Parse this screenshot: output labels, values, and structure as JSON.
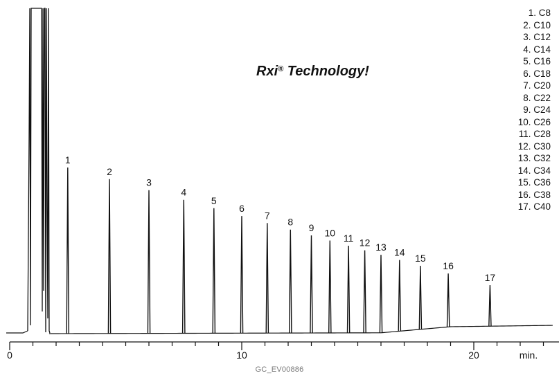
{
  "chart_data": {
    "type": "line",
    "x_unit": "min.",
    "xlim": [
      0,
      23.5
    ],
    "x_ticks": [
      0,
      10,
      20
    ],
    "x_minor_step": 1,
    "peaks": [
      {
        "label": "1",
        "rt": 2.5
      },
      {
        "label": "2",
        "rt": 4.3
      },
      {
        "label": "3",
        "rt": 6.0
      },
      {
        "label": "4",
        "rt": 7.5
      },
      {
        "label": "5",
        "rt": 8.8
      },
      {
        "label": "6",
        "rt": 10.0
      },
      {
        "label": "7",
        "rt": 11.1
      },
      {
        "label": "8",
        "rt": 12.1
      },
      {
        "label": "9",
        "rt": 13.0
      },
      {
        "label": "10",
        "rt": 13.8
      },
      {
        "label": "11",
        "rt": 14.6
      },
      {
        "label": "12",
        "rt": 15.3
      },
      {
        "label": "13",
        "rt": 16.0
      },
      {
        "label": "14",
        "rt": 16.8
      },
      {
        "label": "15",
        "rt": 17.7
      },
      {
        "label": "16",
        "rt": 18.9
      },
      {
        "label": "17",
        "rt": 20.7
      }
    ],
    "legend": [
      "1. C8",
      "2. C10",
      "3. C12",
      "4. C14",
      "5. C16",
      "6. C18",
      "7. C20",
      "8. C22",
      "9. C24",
      "10. C26",
      "11. C28",
      "12. C30",
      "13. C32",
      "14. C34",
      "15. C36",
      "16. C38",
      "17. C40"
    ],
    "annotation": {
      "name": "Rxi",
      "mark": "®",
      "rest": " Technology!"
    },
    "footer": "GC_EV00886"
  }
}
